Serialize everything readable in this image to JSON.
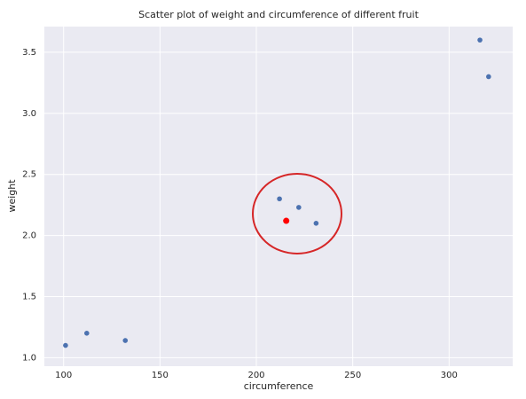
{
  "chart_data": {
    "type": "scatter",
    "title": "Scatter plot of weight and circumference of different fruit",
    "x_label": "circumference",
    "y_label": "weight",
    "series": [
      {
        "color": "#4c72b0",
        "x": [
          101,
          112,
          132,
          212,
          222,
          231,
          316,
          320.5
        ],
        "values": [
          1.1,
          1.2,
          1.14,
          2.3,
          2.23,
          2.1,
          3.6,
          3.3
        ]
      },
      {
        "color": "#ff0000",
        "x": [
          215.5
        ],
        "values": [
          2.12
        ]
      }
    ],
    "xlim": [
      90,
      333
    ],
    "xticks": [
      100,
      150,
      200,
      250,
      300
    ],
    "ylim": [
      0.93,
      3.71
    ],
    "yticks": [
      {
        "value": 1,
        "label": "1.0"
      },
      1.5,
      {
        "value": 2,
        "label": "2.0"
      },
      2.5,
      {
        "value": 3,
        "label": "3.0"
      },
      3.5
    ],
    "grid": true
  }
}
